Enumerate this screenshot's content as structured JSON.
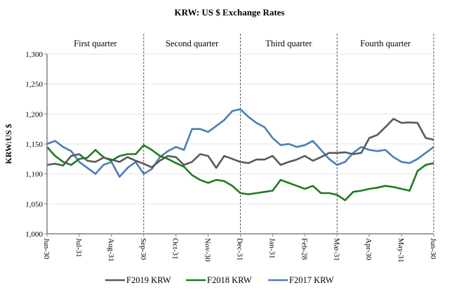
{
  "chart_data": {
    "type": "line",
    "title": "KRW: US $ Exchange Rates",
    "xlabel": "",
    "ylabel": "KRW:US $",
    "ylim": [
      1000,
      1300
    ],
    "yticks": [
      1000,
      1050,
      1100,
      1150,
      1200,
      1250,
      1300
    ],
    "ytick_labels": [
      "1,000",
      "1,050",
      "1,100",
      "1,150",
      "1,200",
      "1,250",
      "1,300"
    ],
    "xlim": [
      0,
      12
    ],
    "x_unit": "months since Jun-30",
    "xtick_labels": [
      "Jun-30",
      "Jul-31",
      "Aug-31",
      "Sep-30",
      "Oct-31",
      "Nov-30",
      "Dec-31",
      "Jan-31",
      "Feb-28",
      "Mar-31",
      "Apr-30",
      "May-31",
      "Jun-30"
    ],
    "grid": true,
    "quarters": [
      {
        "label": "First quarter",
        "start": 0,
        "end": 3
      },
      {
        "label": "Second quarter",
        "start": 3,
        "end": 6
      },
      {
        "label": "Third quarter",
        "start": 6,
        "end": 9
      },
      {
        "label": "Fourth quarter",
        "start": 9,
        "end": 12
      }
    ],
    "legend_position": "bottom",
    "series": [
      {
        "name": "F2019 KRW",
        "color": "#595959",
        "x": [
          0,
          0.25,
          0.5,
          0.75,
          1.0,
          1.25,
          1.5,
          1.75,
          2.0,
          2.25,
          2.5,
          2.75,
          3.0,
          3.25,
          3.5,
          3.75,
          4.0,
          4.25,
          4.5,
          4.75,
          5.0,
          5.25,
          5.5,
          5.75,
          6.0,
          6.25,
          6.5,
          6.75,
          7.0,
          7.25,
          7.5,
          7.75,
          8.0,
          8.25,
          8.5,
          8.75,
          9.0,
          9.25,
          9.5,
          9.75,
          10.0,
          10.25,
          10.5,
          10.75,
          11.0,
          11.25,
          11.5,
          11.75,
          12.0
        ],
        "values": [
          1115,
          1117,
          1114,
          1130,
          1133,
          1122,
          1120,
          1127,
          1124,
          1120,
          1128,
          1122,
          1117,
          1111,
          1122,
          1130,
          1128,
          1115,
          1120,
          1133,
          1130,
          1110,
          1130,
          1125,
          1120,
          1118,
          1124,
          1124,
          1130,
          1115,
          1120,
          1124,
          1130,
          1122,
          1128,
          1135,
          1135,
          1136,
          1133,
          1135,
          1160,
          1165,
          1178,
          1192,
          1185,
          1186,
          1185,
          1160,
          1157
        ]
      },
      {
        "name": "F2018 KRW",
        "color": "#1E7B1E",
        "x": [
          0,
          0.25,
          0.5,
          0.75,
          1.0,
          1.25,
          1.5,
          1.75,
          2.0,
          2.25,
          2.5,
          2.75,
          3.0,
          3.25,
          3.5,
          3.75,
          4.0,
          4.25,
          4.5,
          4.75,
          5.0,
          5.25,
          5.5,
          5.75,
          6.0,
          6.25,
          6.5,
          6.75,
          7.0,
          7.25,
          7.5,
          7.75,
          8.0,
          8.25,
          8.5,
          8.75,
          9.0,
          9.25,
          9.5,
          9.75,
          10.0,
          10.25,
          10.5,
          10.75,
          11.0,
          11.25,
          11.5,
          11.75,
          12.0
        ],
        "values": [
          1145,
          1130,
          1120,
          1115,
          1125,
          1127,
          1140,
          1128,
          1122,
          1130,
          1133,
          1133,
          1148,
          1140,
          1130,
          1125,
          1118,
          1112,
          1098,
          1090,
          1085,
          1090,
          1088,
          1080,
          1068,
          1066,
          1068,
          1070,
          1072,
          1090,
          1085,
          1080,
          1075,
          1080,
          1068,
          1068,
          1065,
          1056,
          1070,
          1072,
          1075,
          1077,
          1080,
          1078,
          1075,
          1072,
          1105,
          1115,
          1118
        ]
      },
      {
        "name": "F2017 KRW",
        "color": "#4A7EBB",
        "x": [
          0,
          0.25,
          0.5,
          0.75,
          1.0,
          1.25,
          1.5,
          1.75,
          2.0,
          2.25,
          2.5,
          2.75,
          3.0,
          3.25,
          3.5,
          3.75,
          4.0,
          4.25,
          4.5,
          4.75,
          5.0,
          5.25,
          5.5,
          5.75,
          6.0,
          6.25,
          6.5,
          6.75,
          7.0,
          7.25,
          7.5,
          7.75,
          8.0,
          8.25,
          8.5,
          8.75,
          9.0,
          9.25,
          9.5,
          9.75,
          10.0,
          10.25,
          10.5,
          10.75,
          11.0,
          11.25,
          11.5,
          11.75,
          12.0
        ],
        "values": [
          1150,
          1155,
          1145,
          1138,
          1120,
          1110,
          1100,
          1115,
          1120,
          1095,
          1110,
          1120,
          1100,
          1108,
          1128,
          1138,
          1145,
          1140,
          1175,
          1175,
          1170,
          1180,
          1190,
          1205,
          1208,
          1195,
          1185,
          1178,
          1160,
          1148,
          1150,
          1145,
          1148,
          1155,
          1140,
          1125,
          1115,
          1120,
          1135,
          1145,
          1140,
          1138,
          1140,
          1128,
          1120,
          1118,
          1125,
          1135,
          1145
        ]
      }
    ]
  }
}
